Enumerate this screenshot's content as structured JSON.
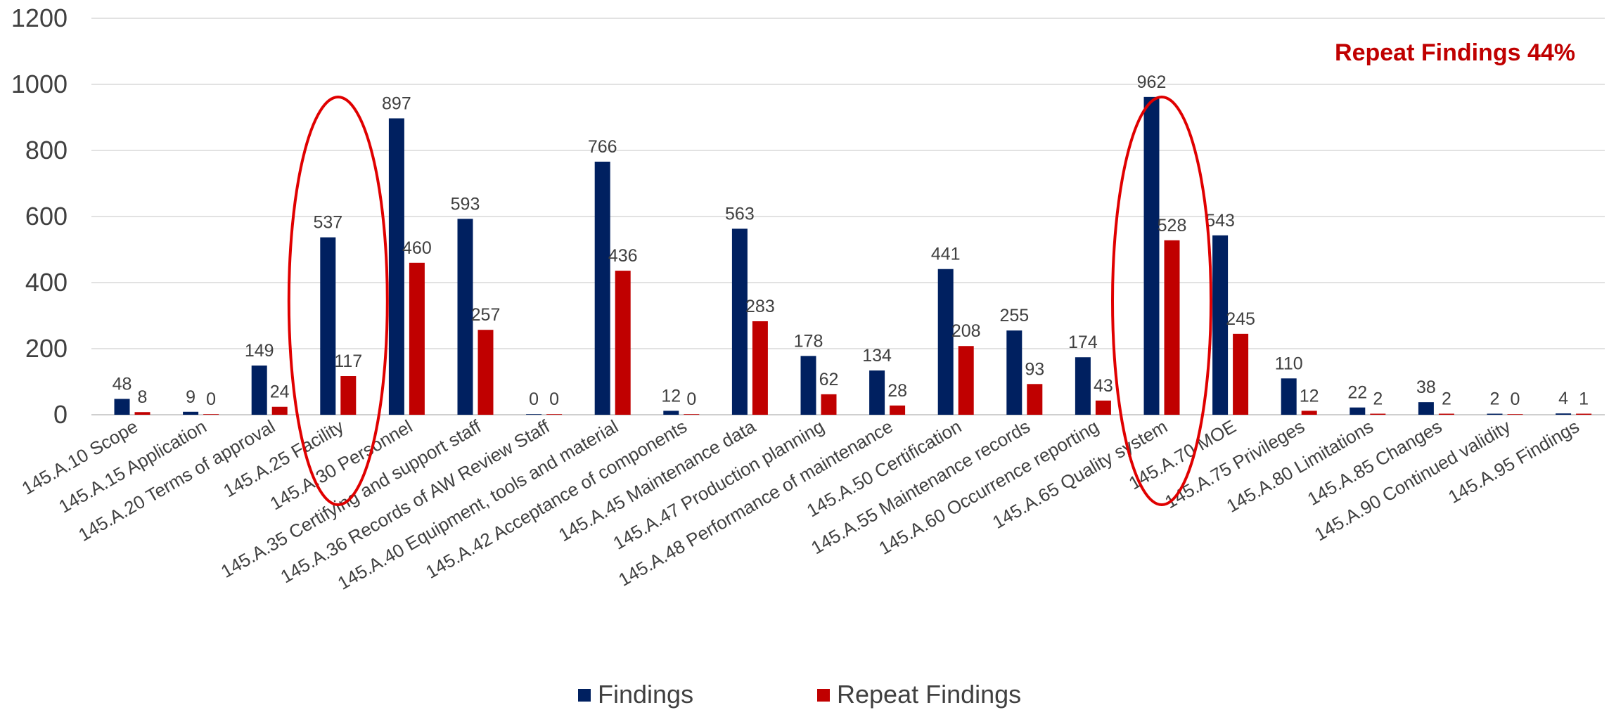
{
  "chart_data": {
    "type": "bar",
    "title": "",
    "xlabel": "",
    "ylabel": "",
    "ylim": [
      0,
      1200
    ],
    "yticks": [
      0,
      200,
      400,
      600,
      800,
      1000,
      1200
    ],
    "grid": true,
    "legend_position": "bottom",
    "categories": [
      "145.A.10 Scope",
      "145.A.15 Application",
      "145.A.20 Terms of approval",
      "145.A.25 Facility",
      "145.A.30 Personnel",
      "145.A.35 Certifying and support staff",
      "145.A.36 Records of AW Review Staff",
      "145.A.40 Equipment, tools and material",
      "145.A.42 Acceptance of components",
      "145.A.45 Maintenance data",
      "145.A.47 Production planning",
      "145.A.48 Performance of maintenance",
      "145.A.50 Certification",
      "145.A.55 Maintenance records",
      "145.A.60 Occurrence reporting",
      "145.A.65 Quality system",
      "145.A.70 MOE",
      "145.A.75 Privileges",
      "145.A.80 Limitations",
      "145.A.85 Changes",
      "145.A.90 Continued validity",
      "145.A.95 Findings"
    ],
    "series": [
      {
        "name": "Findings",
        "color": "#002060",
        "values": [
          48,
          9,
          149,
          537,
          897,
          593,
          0,
          766,
          12,
          563,
          178,
          134,
          441,
          255,
          174,
          962,
          543,
          110,
          22,
          38,
          2,
          4
        ]
      },
      {
        "name": "Repeat Findings",
        "color": "#C00000",
        "values": [
          8,
          0,
          24,
          117,
          460,
          257,
          0,
          436,
          0,
          283,
          62,
          28,
          208,
          93,
          43,
          528,
          245,
          12,
          2,
          2,
          0,
          1
        ]
      }
    ],
    "annotation": {
      "text": "Repeat Findings 44%",
      "color": "#C00000",
      "position": "top-right"
    },
    "highlighted_categories": [
      "145.A.25 Facility",
      "145.A.65 Quality system"
    ],
    "highlight_color": "#E00000"
  }
}
